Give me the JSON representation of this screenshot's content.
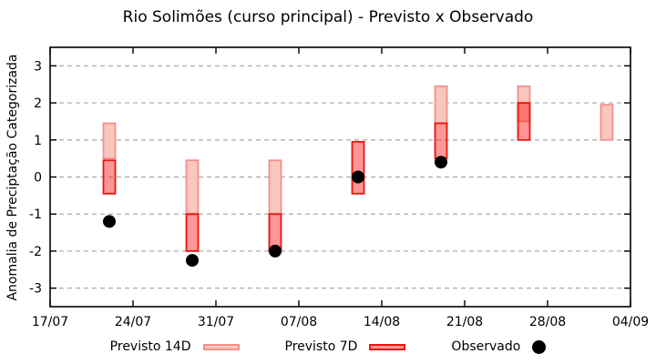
{
  "window_title": "Rio Solimões (curso principal) - Previsto x Observado",
  "chart_data": {
    "type": "bar",
    "subtype": "forecast-range-bars-with-observed-scatter",
    "title": "Rio Solimões (curso principal) - Previsto x Observado",
    "xlabel": "",
    "ylabel": "Anomalia de Preciptação Categorizada",
    "ylim": [
      -3.5,
      3.5
    ],
    "yticks": [
      3,
      2,
      1,
      0,
      -1,
      -2,
      -3
    ],
    "x_span_days": 49,
    "xticks": [
      {
        "day": 0,
        "label": "17/07"
      },
      {
        "day": 7,
        "label": "24/07"
      },
      {
        "day": 14,
        "label": "31/07"
      },
      {
        "day": 21,
        "label": "07/08"
      },
      {
        "day": 28,
        "label": "14/08"
      },
      {
        "day": 35,
        "label": "21/08"
      },
      {
        "day": 42,
        "label": "28/08"
      },
      {
        "day": 49,
        "label": "04/09"
      }
    ],
    "grid": {
      "horizontal_dashed": true,
      "vertical": false,
      "color": "#a9a9a9"
    },
    "colors": {
      "forecast14_fill": "#fac6be",
      "forecast14_border": "#f2908a",
      "forecast7_fill": "rgba(248,25,20,0.45)",
      "forecast7_border": "#e81510",
      "observed": "#000000",
      "frame": "#000000"
    },
    "series": [
      {
        "name": "Previsto 14D",
        "type": "range",
        "style": "forecast14",
        "points": [
          {
            "date": "22/07",
            "day": 5,
            "low": 0.5,
            "high": 1.45
          },
          {
            "date": "29/07",
            "day": 12,
            "low": -1.0,
            "high": 0.45
          },
          {
            "date": "05/08",
            "day": 19,
            "low": -1.0,
            "high": 0.45
          },
          {
            "date": "19/08",
            "day": 33,
            "low": 1.45,
            "high": 2.45
          },
          {
            "date": "26/08",
            "day": 40,
            "low": 1.5,
            "high": 2.45
          },
          {
            "date": "02/09",
            "day": 47,
            "low": 1.0,
            "high": 1.95
          }
        ]
      },
      {
        "name": "Previsto 7D",
        "type": "range",
        "style": "forecast7",
        "points": [
          {
            "date": "22/07",
            "day": 5,
            "low": -0.45,
            "high": 0.45
          },
          {
            "date": "29/07",
            "day": 12,
            "low": -2.0,
            "high": -1.0
          },
          {
            "date": "05/08",
            "day": 19,
            "low": -2.0,
            "high": -1.0
          },
          {
            "date": "12/08",
            "day": 26,
            "low": -0.45,
            "high": 0.95
          },
          {
            "date": "19/08",
            "day": 33,
            "low": 0.5,
            "high": 1.45
          },
          {
            "date": "26/08",
            "day": 40,
            "low": 1.0,
            "high": 2.0
          }
        ]
      },
      {
        "name": "Observado",
        "type": "scatter",
        "style": "observed",
        "points": [
          {
            "date": "22/07",
            "day": 5,
            "value": -1.2
          },
          {
            "date": "29/07",
            "day": 12,
            "value": -2.25
          },
          {
            "date": "05/08",
            "day": 19,
            "value": -2.0
          },
          {
            "date": "12/08",
            "day": 26,
            "value": 0.0
          },
          {
            "date": "19/08",
            "day": 33,
            "value": 0.4
          }
        ]
      }
    ],
    "legend_position": "bottom-center"
  },
  "legend": {
    "items": [
      {
        "label": "Previsto 14D",
        "marker": "range-light"
      },
      {
        "label": "Previsto 7D",
        "marker": "range-dark"
      },
      {
        "label": "Observado",
        "marker": "black-dot"
      }
    ]
  }
}
